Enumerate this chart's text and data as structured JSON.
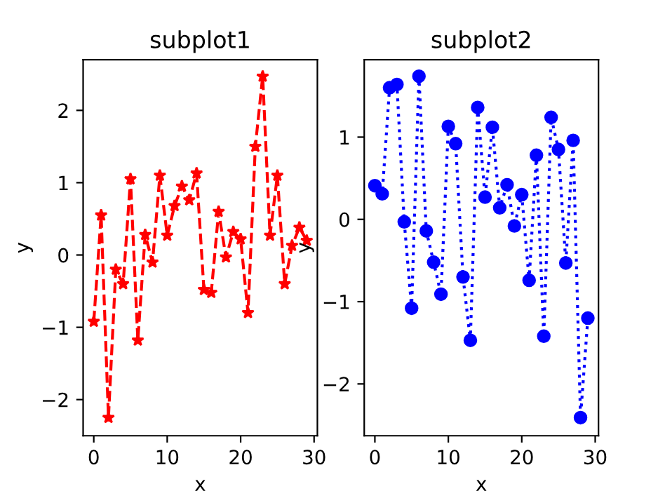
{
  "chart_data": [
    {
      "type": "line",
      "title": "subplot1",
      "xlabel": "x",
      "ylabel": "y",
      "x": [
        0,
        1,
        2,
        3,
        4,
        5,
        6,
        7,
        8,
        9,
        10,
        11,
        12,
        13,
        14,
        15,
        16,
        17,
        18,
        19,
        20,
        21,
        22,
        23,
        24,
        25,
        26,
        27,
        28,
        29
      ],
      "series": [
        {
          "color": "#ff0000",
          "marker": "star",
          "line_style": "dashed",
          "values": [
            -0.92,
            0.55,
            -2.25,
            -0.2,
            -0.4,
            1.05,
            -1.18,
            0.28,
            -0.1,
            1.1,
            0.27,
            0.68,
            0.95,
            0.76,
            1.13,
            -0.48,
            -0.52,
            0.6,
            -0.03,
            0.32,
            0.22,
            -0.8,
            1.5,
            2.47,
            0.27,
            1.1,
            -0.4,
            0.13,
            0.38,
            0.2
          ]
        }
      ],
      "xlim": [
        -1.45,
        30.45
      ],
      "xticks": [
        0,
        10,
        20,
        30
      ],
      "ylim": [
        -2.5,
        2.7
      ],
      "yticks": [
        -2,
        -1,
        0,
        1,
        2
      ],
      "grid": false,
      "legend": false
    },
    {
      "type": "line",
      "title": "subplot2",
      "xlabel": "x",
      "ylabel": "y",
      "x": [
        0,
        1,
        2,
        3,
        4,
        5,
        6,
        7,
        8,
        9,
        10,
        11,
        12,
        13,
        14,
        15,
        16,
        17,
        18,
        19,
        20,
        21,
        22,
        23,
        24,
        25,
        26,
        27,
        28,
        29
      ],
      "series": [
        {
          "color": "#0000ff",
          "marker": "circle",
          "line_style": "dotted",
          "values": [
            0.41,
            0.31,
            1.6,
            1.64,
            -0.03,
            -1.08,
            1.74,
            -0.14,
            -0.52,
            -0.91,
            1.13,
            0.92,
            -0.7,
            -1.47,
            1.36,
            0.27,
            1.12,
            0.14,
            0.42,
            -0.08,
            0.3,
            -0.74,
            0.78,
            -1.42,
            1.24,
            0.85,
            -0.53,
            0.96,
            -2.41,
            -1.2
          ]
        }
      ],
      "xlim": [
        -1.45,
        30.45
      ],
      "xticks": [
        0,
        10,
        20,
        30
      ],
      "ylim": [
        -2.63,
        1.94
      ],
      "yticks": [
        -2,
        -1,
        0,
        1
      ],
      "grid": false,
      "legend": false
    }
  ]
}
